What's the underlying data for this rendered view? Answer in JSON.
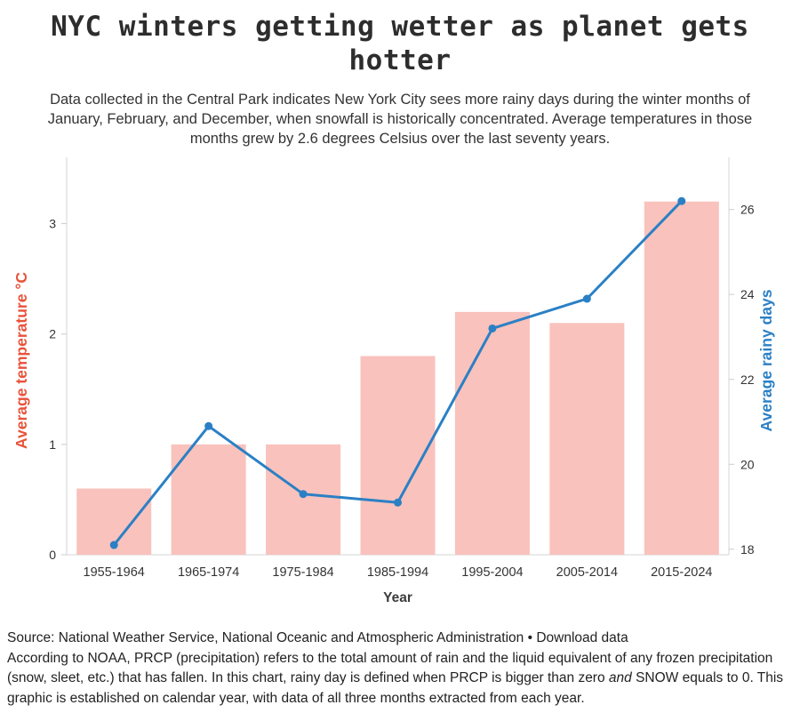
{
  "header": {
    "title": "NYC winters getting wetter as planet gets hotter",
    "subtitle": "Data collected in the Central Park indicates New York City sees more rainy days during the winter months of January, February, and December, when snowfall is historically concentrated. Average temperatures in those months grew by 2.6 degrees Celsius over the last seventy years."
  },
  "chart_data": {
    "type": "bar+line",
    "categories": [
      "1955-1964",
      "1965-1974",
      "1975-1984",
      "1985-1994",
      "1995-2004",
      "2005-2014",
      "2015-2024"
    ],
    "series": [
      {
        "name": "Average temperature °C",
        "type": "bar",
        "axis": "left",
        "color": "#f9c2bc",
        "values": [
          0.6,
          1.0,
          1.0,
          1.8,
          2.2,
          2.1,
          3.2
        ]
      },
      {
        "name": "Average rainy days",
        "type": "line",
        "axis": "right",
        "color": "#2b80c5",
        "values": [
          18.1,
          20.9,
          19.3,
          19.1,
          23.2,
          23.9,
          26.2
        ]
      }
    ],
    "xlabel": "Year",
    "left_axis": {
      "label": "Average temperature °C",
      "color": "#e8533b",
      "ticks": [
        0,
        1,
        2,
        3
      ],
      "range": [
        0,
        3.52
      ]
    },
    "right_axis": {
      "label": "Average rainy days",
      "color": "#2b80c5",
      "ticks": [
        18,
        20,
        22,
        24,
        26
      ],
      "range": [
        17.87,
        27.02
      ]
    },
    "grid": false,
    "legend": "none"
  },
  "footer": {
    "source_prefix": "Source: National Weather Service, National Oceanic and Atmospheric Administration",
    "separator": " • ",
    "download_link": "Download data",
    "note_part1": "According to NOAA, PRCP (precipitation) refers to the total amount of rain and the liquid equivalent of any frozen precipitation (snow, sleet, etc.) that has fallen. In this chart, rainy day is defined when PRCP is bigger than zero ",
    "note_italic": "and",
    "note_part2": " SNOW equals to 0. This graphic is established on calendar year, with data of all three months extracted from each year."
  }
}
